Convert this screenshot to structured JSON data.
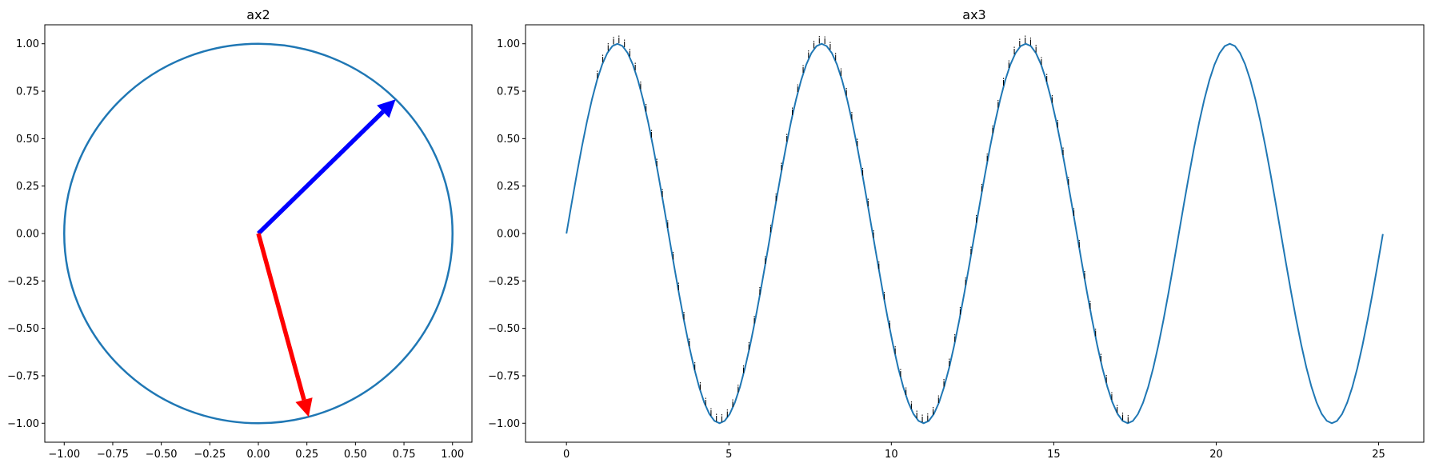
{
  "chart_data": [
    {
      "type": "line",
      "title": "ax2",
      "xlabel": "",
      "ylabel": "",
      "xlim": [
        -1.1,
        1.1
      ],
      "ylim": [
        -1.1,
        1.1
      ],
      "xticks": [
        -1.0,
        -0.75,
        -0.5,
        -0.25,
        0.0,
        0.25,
        0.5,
        0.75,
        1.0
      ],
      "xtick_labels": [
        "−1.00",
        "−0.75",
        "−0.50",
        "−0.25",
        "0.00",
        "0.25",
        "0.50",
        "0.75",
        "1.00"
      ],
      "yticks": [
        1.0,
        0.75,
        0.5,
        0.25,
        0.0,
        -0.25,
        -0.5,
        -0.75,
        -1.0
      ],
      "ytick_labels": [
        "1.00",
        "0.75",
        "0.50",
        "0.25",
        "0.00",
        "−0.25",
        "−0.50",
        "−0.75",
        "−1.00"
      ],
      "series": [
        {
          "shape": "unit-circle",
          "center": [
            0,
            0
          ],
          "radius": 1.0,
          "color": "#1f77b4"
        }
      ],
      "arrows": [
        {
          "from": [
            0,
            0
          ],
          "to": [
            0.707,
            0.707
          ],
          "color": "#0000ff"
        },
        {
          "from": [
            0,
            0
          ],
          "to": [
            0.259,
            -0.966
          ],
          "color": "#ff0000"
        }
      ],
      "grid": false
    },
    {
      "type": "line",
      "title": "ax3",
      "xlabel": "",
      "ylabel": "",
      "xlim": [
        -1.26,
        26.39
      ],
      "ylim": [
        -1.1,
        1.1
      ],
      "xticks": [
        0,
        5,
        10,
        15,
        20,
        25
      ],
      "xtick_labels": [
        "0",
        "5",
        "10",
        "15",
        "20",
        "25"
      ],
      "yticks": [
        1.0,
        0.75,
        0.5,
        0.25,
        0.0,
        -0.25,
        -0.5,
        -0.75,
        -1.0
      ],
      "ytick_labels": [
        "1.00",
        "0.75",
        "0.50",
        "0.25",
        "0.00",
        "−0.25",
        "−0.50",
        "−0.75",
        "−1.00"
      ],
      "series": [
        {
          "function": "y = sin(x)",
          "x_range": [
            0,
            25.13
          ],
          "color": "#1f77b4"
        }
      ],
      "annotations": {
        "text": "i",
        "along": "y = sin(x)",
        "x_range": [
          0.95,
          17.45
        ],
        "step": 0.1667
      },
      "grid": false
    }
  ]
}
